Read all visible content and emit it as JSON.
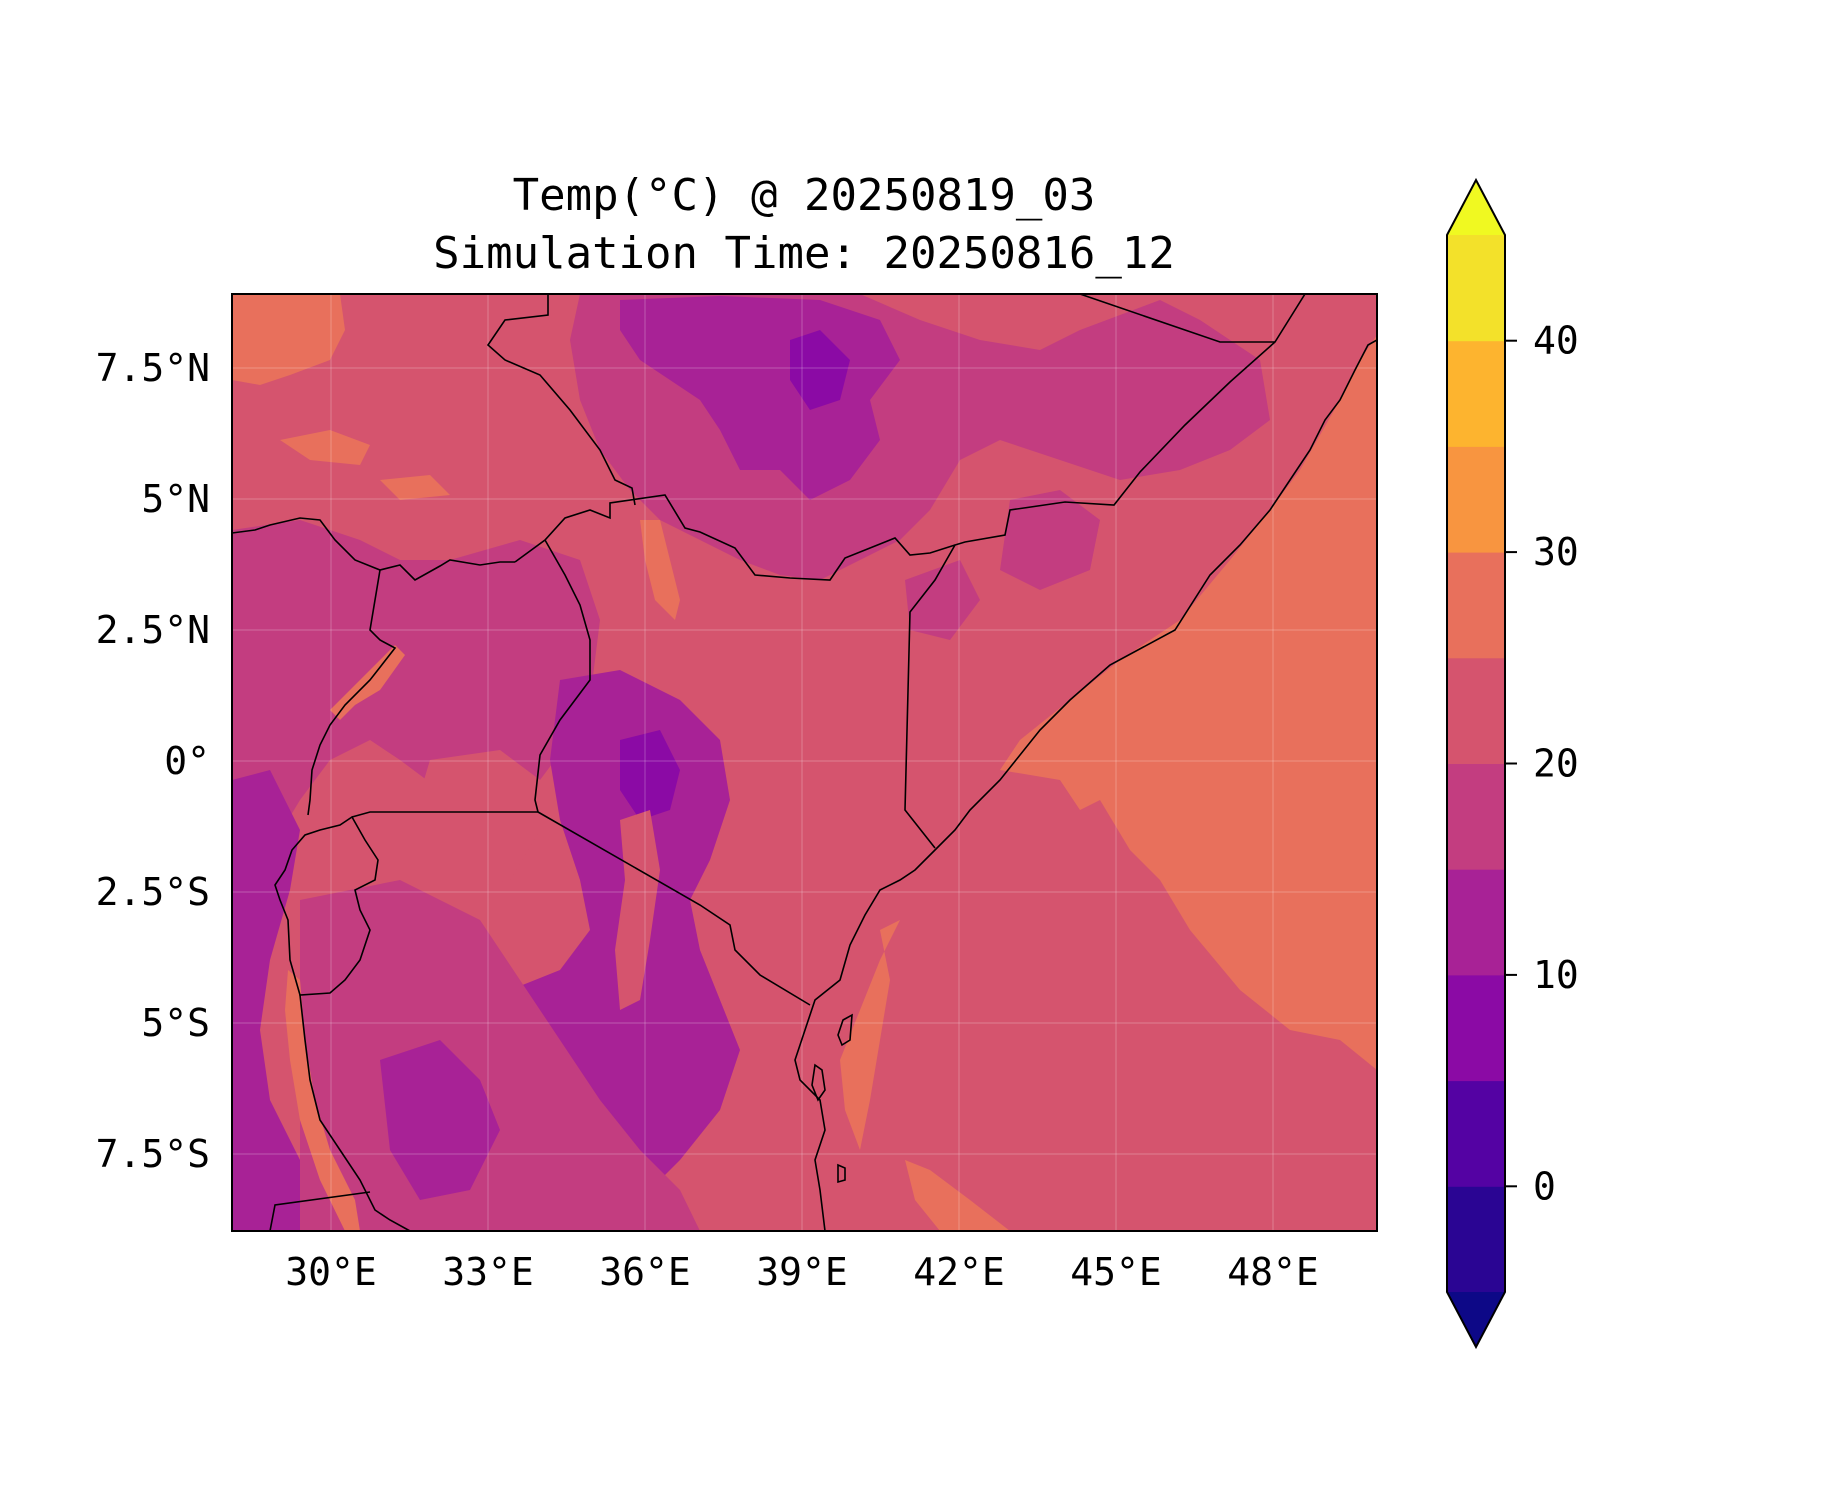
{
  "title": {
    "line1": "Temp(°C) @ 20250819_03",
    "line2": "Simulation Time: 20250816_12"
  },
  "map": {
    "lon_range": [
      27.9,
      49.8
    ],
    "lat_range": [
      -8.9,
      9.0
    ],
    "lon_ticks": [
      "30°E",
      "33°E",
      "36°E",
      "39°E",
      "42°E",
      "45°E",
      "48°E"
    ],
    "lat_ticks": [
      "7.5°N",
      "5°N",
      "2.5°N",
      "0°",
      "2.5°S",
      "5°S",
      "7.5°S"
    ],
    "gridlines": true,
    "coastlines": true,
    "borders": true,
    "field": "Temperature",
    "dominant_bands": {
      "indian_ocean_far": "25-30",
      "indian_ocean_near": "20-25",
      "somali_coast": "25-30",
      "ethiopian_highlands": "10-20",
      "kenya_tanzania_highlands": "10-15",
      "uganda_plateau": "15-20",
      "lowlands": "20-25"
    }
  },
  "colorbar": {
    "levels": [
      -5,
      0,
      5,
      10,
      15,
      20,
      25,
      30,
      35,
      40,
      45
    ],
    "tick_labels": [
      "0",
      "10",
      "20",
      "30",
      "40"
    ],
    "tick_values": [
      0,
      10,
      20,
      30,
      40
    ],
    "extend": "both",
    "under_color": "#0d0887",
    "over_color": "#f0f921",
    "colors": [
      "#2a0593",
      "#5402a3",
      "#8b0aa5",
      "#a82296",
      "#c33d80",
      "#d5546e",
      "#e8705c",
      "#f89540",
      "#fdb42f",
      "#f3e12a"
    ]
  }
}
